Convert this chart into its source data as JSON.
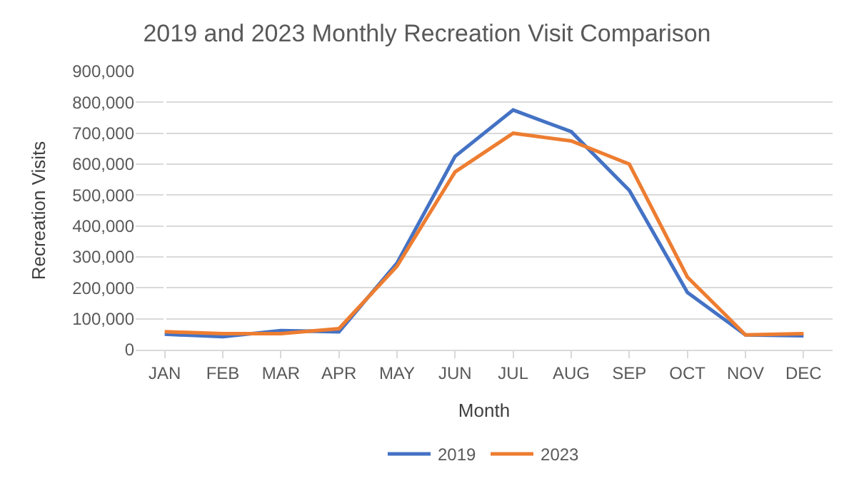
{
  "chart_data": {
    "type": "line",
    "title": "2019 and 2023 Monthly Recreation Visit Comparison",
    "xlabel": "Month",
    "ylabel": "Recreation Visits",
    "categories": [
      "JAN",
      "FEB",
      "MAR",
      "APR",
      "MAY",
      "JUN",
      "JUL",
      "AUG",
      "SEP",
      "OCT",
      "NOV",
      "DEC"
    ],
    "series": [
      {
        "name": "2019",
        "color": "#4472c4",
        "values": [
          50000,
          42000,
          62000,
          58000,
          280000,
          625000,
          775000,
          705000,
          515000,
          185000,
          48000,
          45000
        ]
      },
      {
        "name": "2023",
        "color": "#ed7d31",
        "values": [
          58000,
          52000,
          52000,
          68000,
          270000,
          575000,
          700000,
          675000,
          600000,
          235000,
          48000,
          52000
        ]
      }
    ],
    "ylim": [
      0,
      900000
    ],
    "yticks": [
      {
        "value": 0,
        "label": "0"
      },
      {
        "value": 100000,
        "label": "100,000"
      },
      {
        "value": 200000,
        "label": "200,000"
      },
      {
        "value": 300000,
        "label": "300,000"
      },
      {
        "value": 400000,
        "label": "400,000"
      },
      {
        "value": 500000,
        "label": "500,000"
      },
      {
        "value": 600000,
        "label": "600,000"
      },
      {
        "value": 700000,
        "label": "700,000"
      },
      {
        "value": 800000,
        "label": "800,000"
      },
      {
        "value": 900000,
        "label": "900,000"
      }
    ],
    "grid": "y",
    "legend": "bottom",
    "marker": "none",
    "line_style": "solid"
  }
}
